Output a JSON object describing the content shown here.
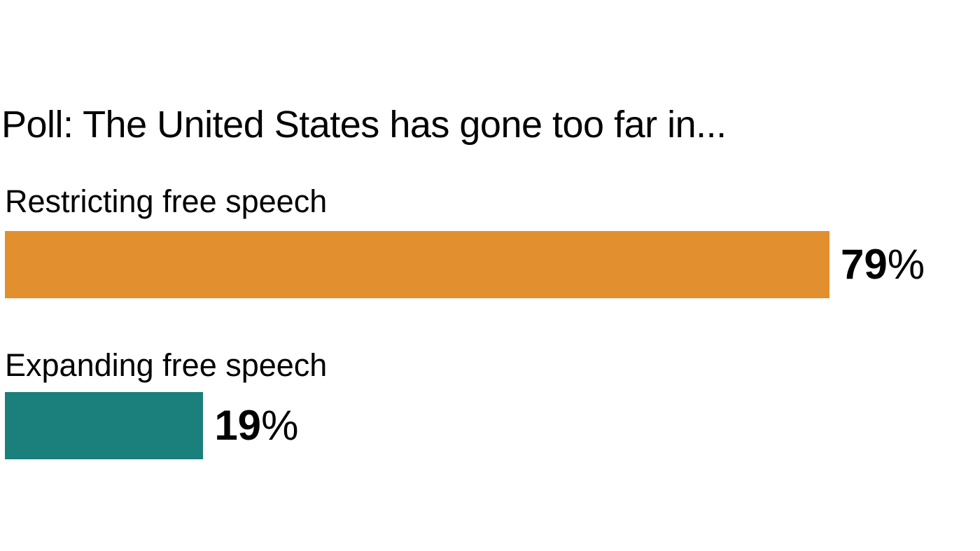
{
  "chart_data": {
    "type": "bar",
    "orientation": "horizontal",
    "title": "Poll: The United States has gone too far in...",
    "categories": [
      "Restricting free speech",
      "Expanding free speech"
    ],
    "values": [
      79,
      19
    ],
    "value_labels": [
      "79%",
      "19%"
    ],
    "colors": [
      "#e18f2f",
      "#1b7f7b"
    ],
    "xlabel": "",
    "ylabel": "",
    "xlim": [
      0,
      100
    ],
    "grid": false,
    "legend": null
  },
  "title": "Poll: The United States has gone too far in...",
  "rows": [
    {
      "label": "Restricting free speech",
      "num": "79",
      "pct": "%",
      "value": 79,
      "color": "#e18f2f"
    },
    {
      "label": "Expanding free speech",
      "num": "19",
      "pct": "%",
      "value": 19,
      "color": "#1b7f7b"
    }
  ]
}
